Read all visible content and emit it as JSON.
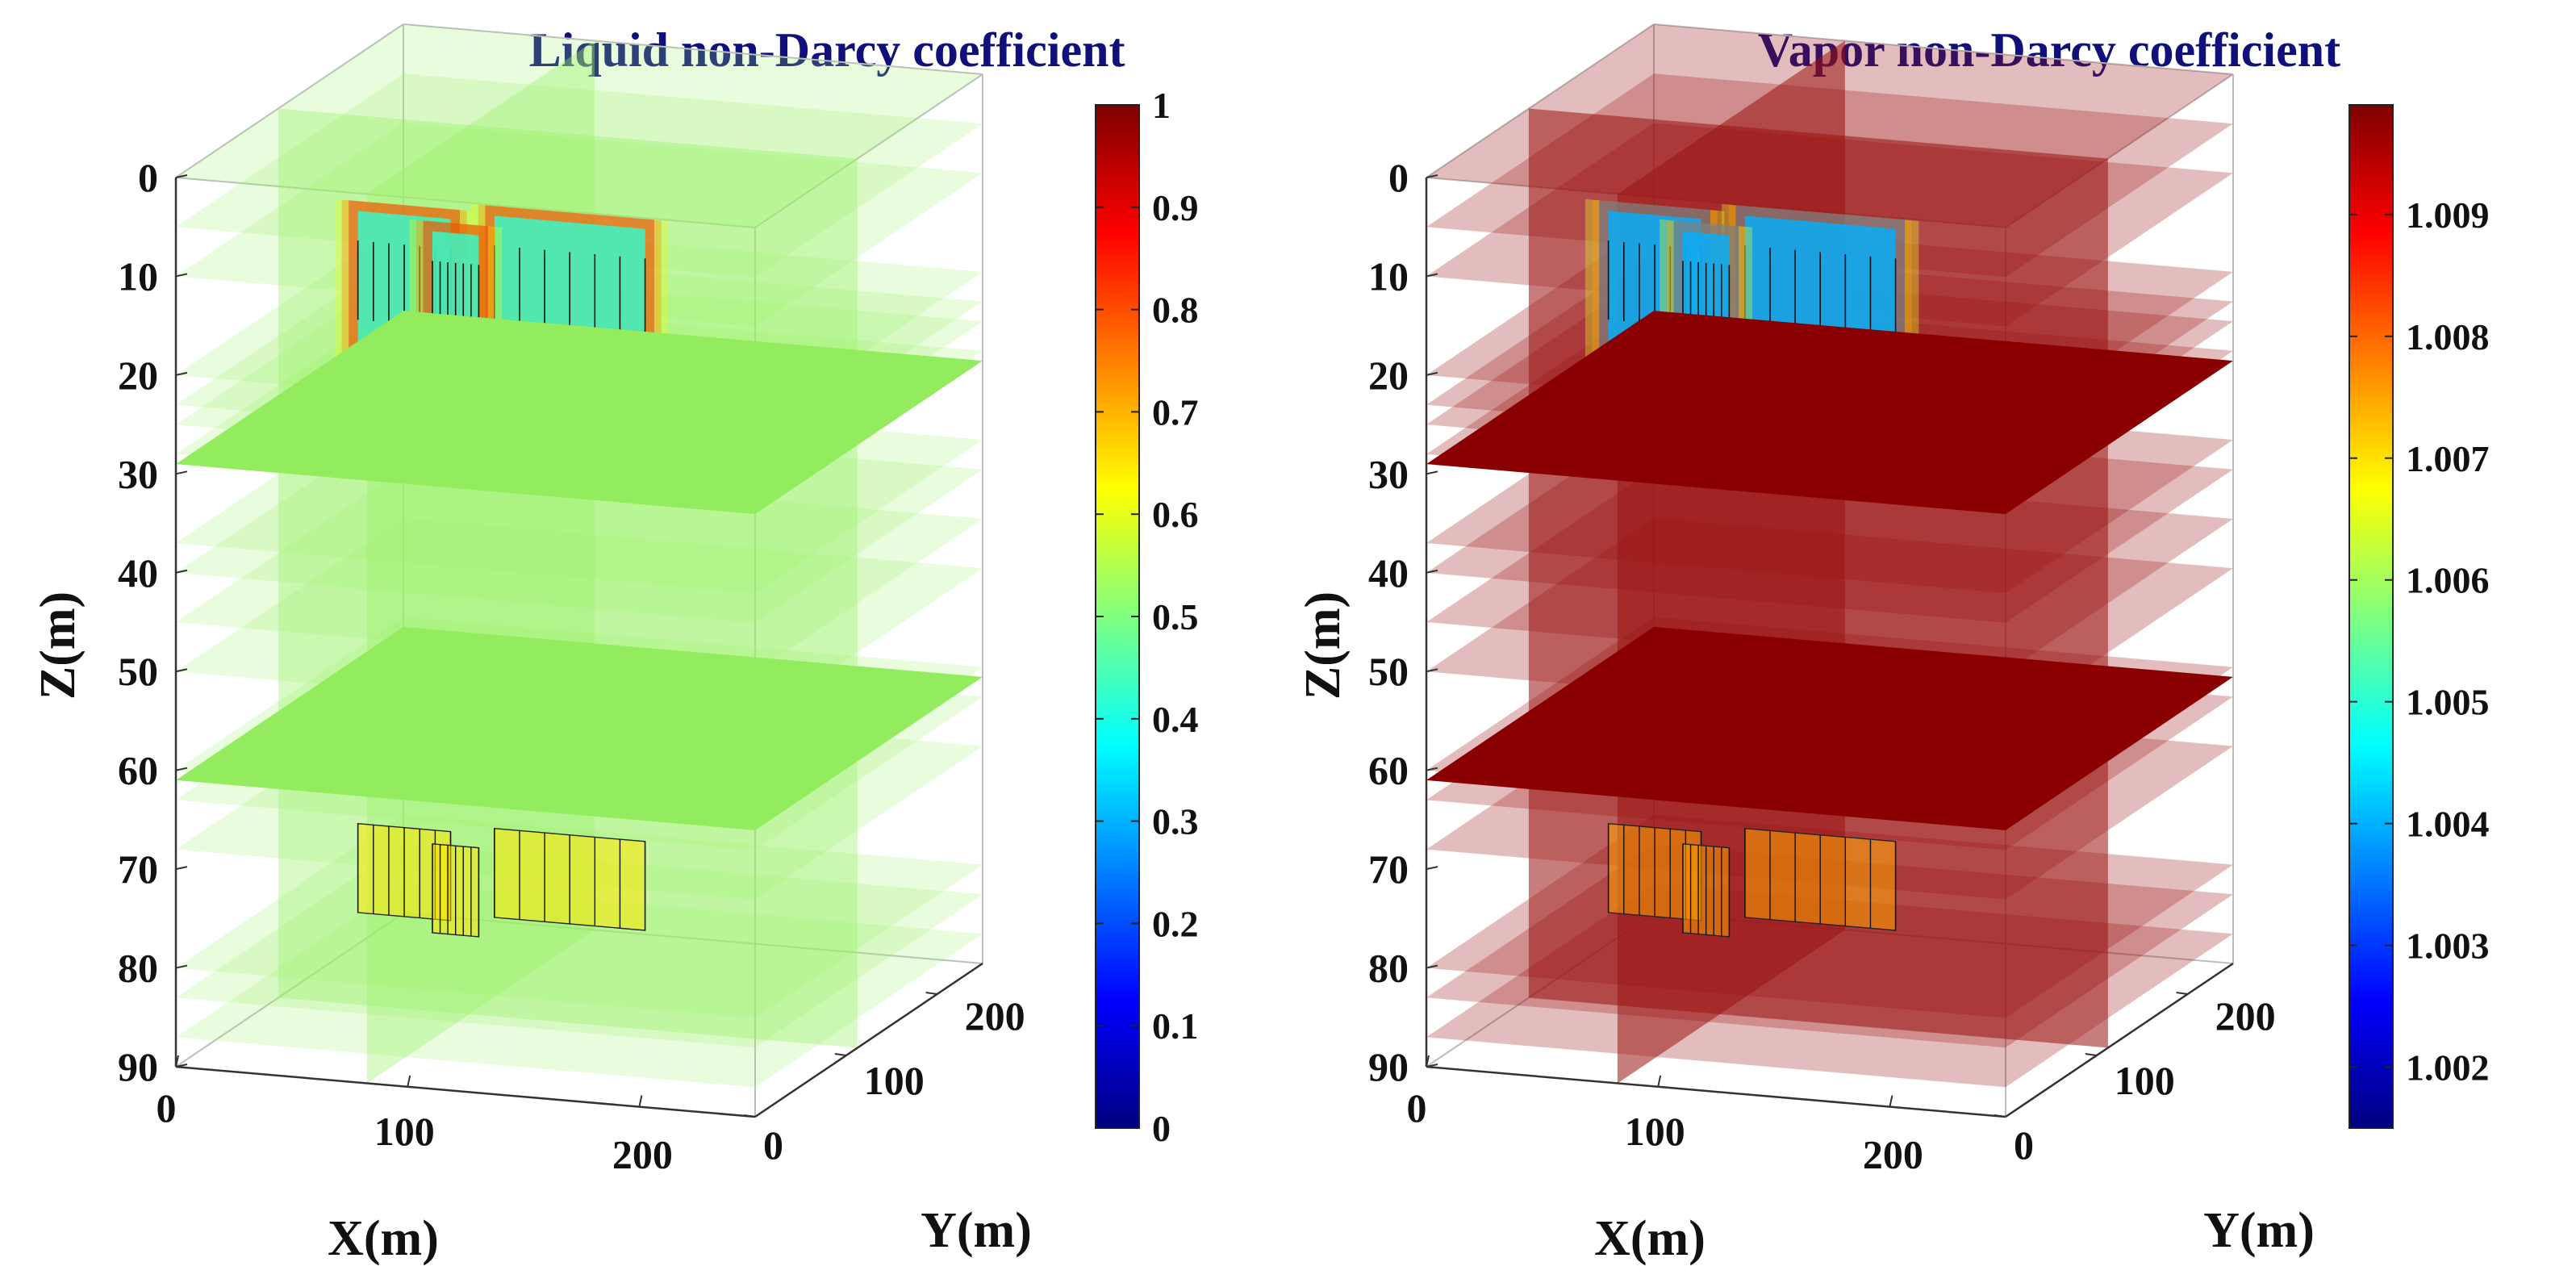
{
  "colors": {
    "title": "#10107a",
    "axis": "#333333",
    "box": "#bdbdbd",
    "liquid_bg": "#9af26a",
    "vapor_bg": "#9b1212",
    "colormap": [
      "#00007f",
      "#0000ff",
      "#0080ff",
      "#00ffff",
      "#80ff80",
      "#ffff00",
      "#ff8000",
      "#ff0000",
      "#7f0000"
    ]
  },
  "chart_data": [
    {
      "type": "3d-slice",
      "title": "Liquid non-Darcy coefficient",
      "xlabel": "X(m)",
      "ylabel": "Y(m)",
      "zlabel": "Z(m)",
      "xlim": [
        0,
        250
      ],
      "ylim": [
        0,
        250
      ],
      "zlim": [
        0,
        90
      ],
      "xticks": [
        "0",
        "100",
        "200"
      ],
      "yticks": [
        "0",
        "100",
        "200"
      ],
      "zticks": [
        "0",
        "10",
        "20",
        "30",
        "40",
        "50",
        "60",
        "70",
        "80",
        "90"
      ],
      "zaxis_direction": "reverse",
      "colorbar": {
        "min": 0,
        "max": 1,
        "ticks": [
          "0",
          "0.1",
          "0.2",
          "0.3",
          "0.4",
          "0.5",
          "0.6",
          "0.7",
          "0.8",
          "0.9",
          "1"
        ],
        "tick_values": [
          0,
          0.1,
          0.2,
          0.3,
          0.4,
          0.5,
          0.6,
          0.7,
          0.8,
          0.9,
          1.0
        ]
      },
      "background_value": 0.55,
      "horizontal_slices_z": [
        0,
        5,
        10,
        20,
        23,
        25,
        28,
        37,
        40,
        45,
        50,
        60,
        63,
        68,
        80,
        83,
        87
      ],
      "opaque_slices_z": [
        29,
        61
      ],
      "upper_fracture_zone": {
        "z_range": [
          6,
          28
        ],
        "core_value": 0.42,
        "edge_values": [
          0.6,
          0.75,
          0.9
        ]
      },
      "lower_fracture_zone": {
        "z_range": [
          68,
          77
        ],
        "core_value": 0.65
      }
    },
    {
      "type": "3d-slice",
      "title": "Vapor non-Darcy coefficient",
      "xlabel": "X(m)",
      "ylabel": "Y(m)",
      "zlabel": "Z(m)",
      "xlim": [
        0,
        250
      ],
      "ylim": [
        0,
        250
      ],
      "zlim": [
        0,
        90
      ],
      "xticks": [
        "0",
        "100",
        "200"
      ],
      "yticks": [
        "0",
        "100",
        "200"
      ],
      "zticks": [
        "0",
        "10",
        "20",
        "30",
        "40",
        "50",
        "60",
        "70",
        "80",
        "90"
      ],
      "zaxis_direction": "reverse",
      "colorbar": {
        "min": 1.0015,
        "max": 1.0099,
        "ticks": [
          "1.002",
          "1.003",
          "1.004",
          "1.005",
          "1.006",
          "1.007",
          "1.008",
          "1.009"
        ],
        "tick_values": [
          1.002,
          1.003,
          1.004,
          1.005,
          1.006,
          1.007,
          1.008,
          1.009
        ]
      },
      "background_value": 1.0099,
      "horizontal_slices_z": [
        0,
        5,
        10,
        20,
        23,
        25,
        28,
        37,
        40,
        45,
        50,
        60,
        63,
        68,
        80,
        83,
        87
      ],
      "opaque_slices_z": [
        29,
        61
      ],
      "upper_fracture_zone": {
        "z_range": [
          6,
          28
        ],
        "core_value": 1.004,
        "edge_values": [
          1.0065,
          1.0075,
          1.003
        ]
      },
      "lower_fracture_zone": {
        "z_range": [
          68,
          77
        ],
        "core_value": 1.0075
      }
    }
  ]
}
